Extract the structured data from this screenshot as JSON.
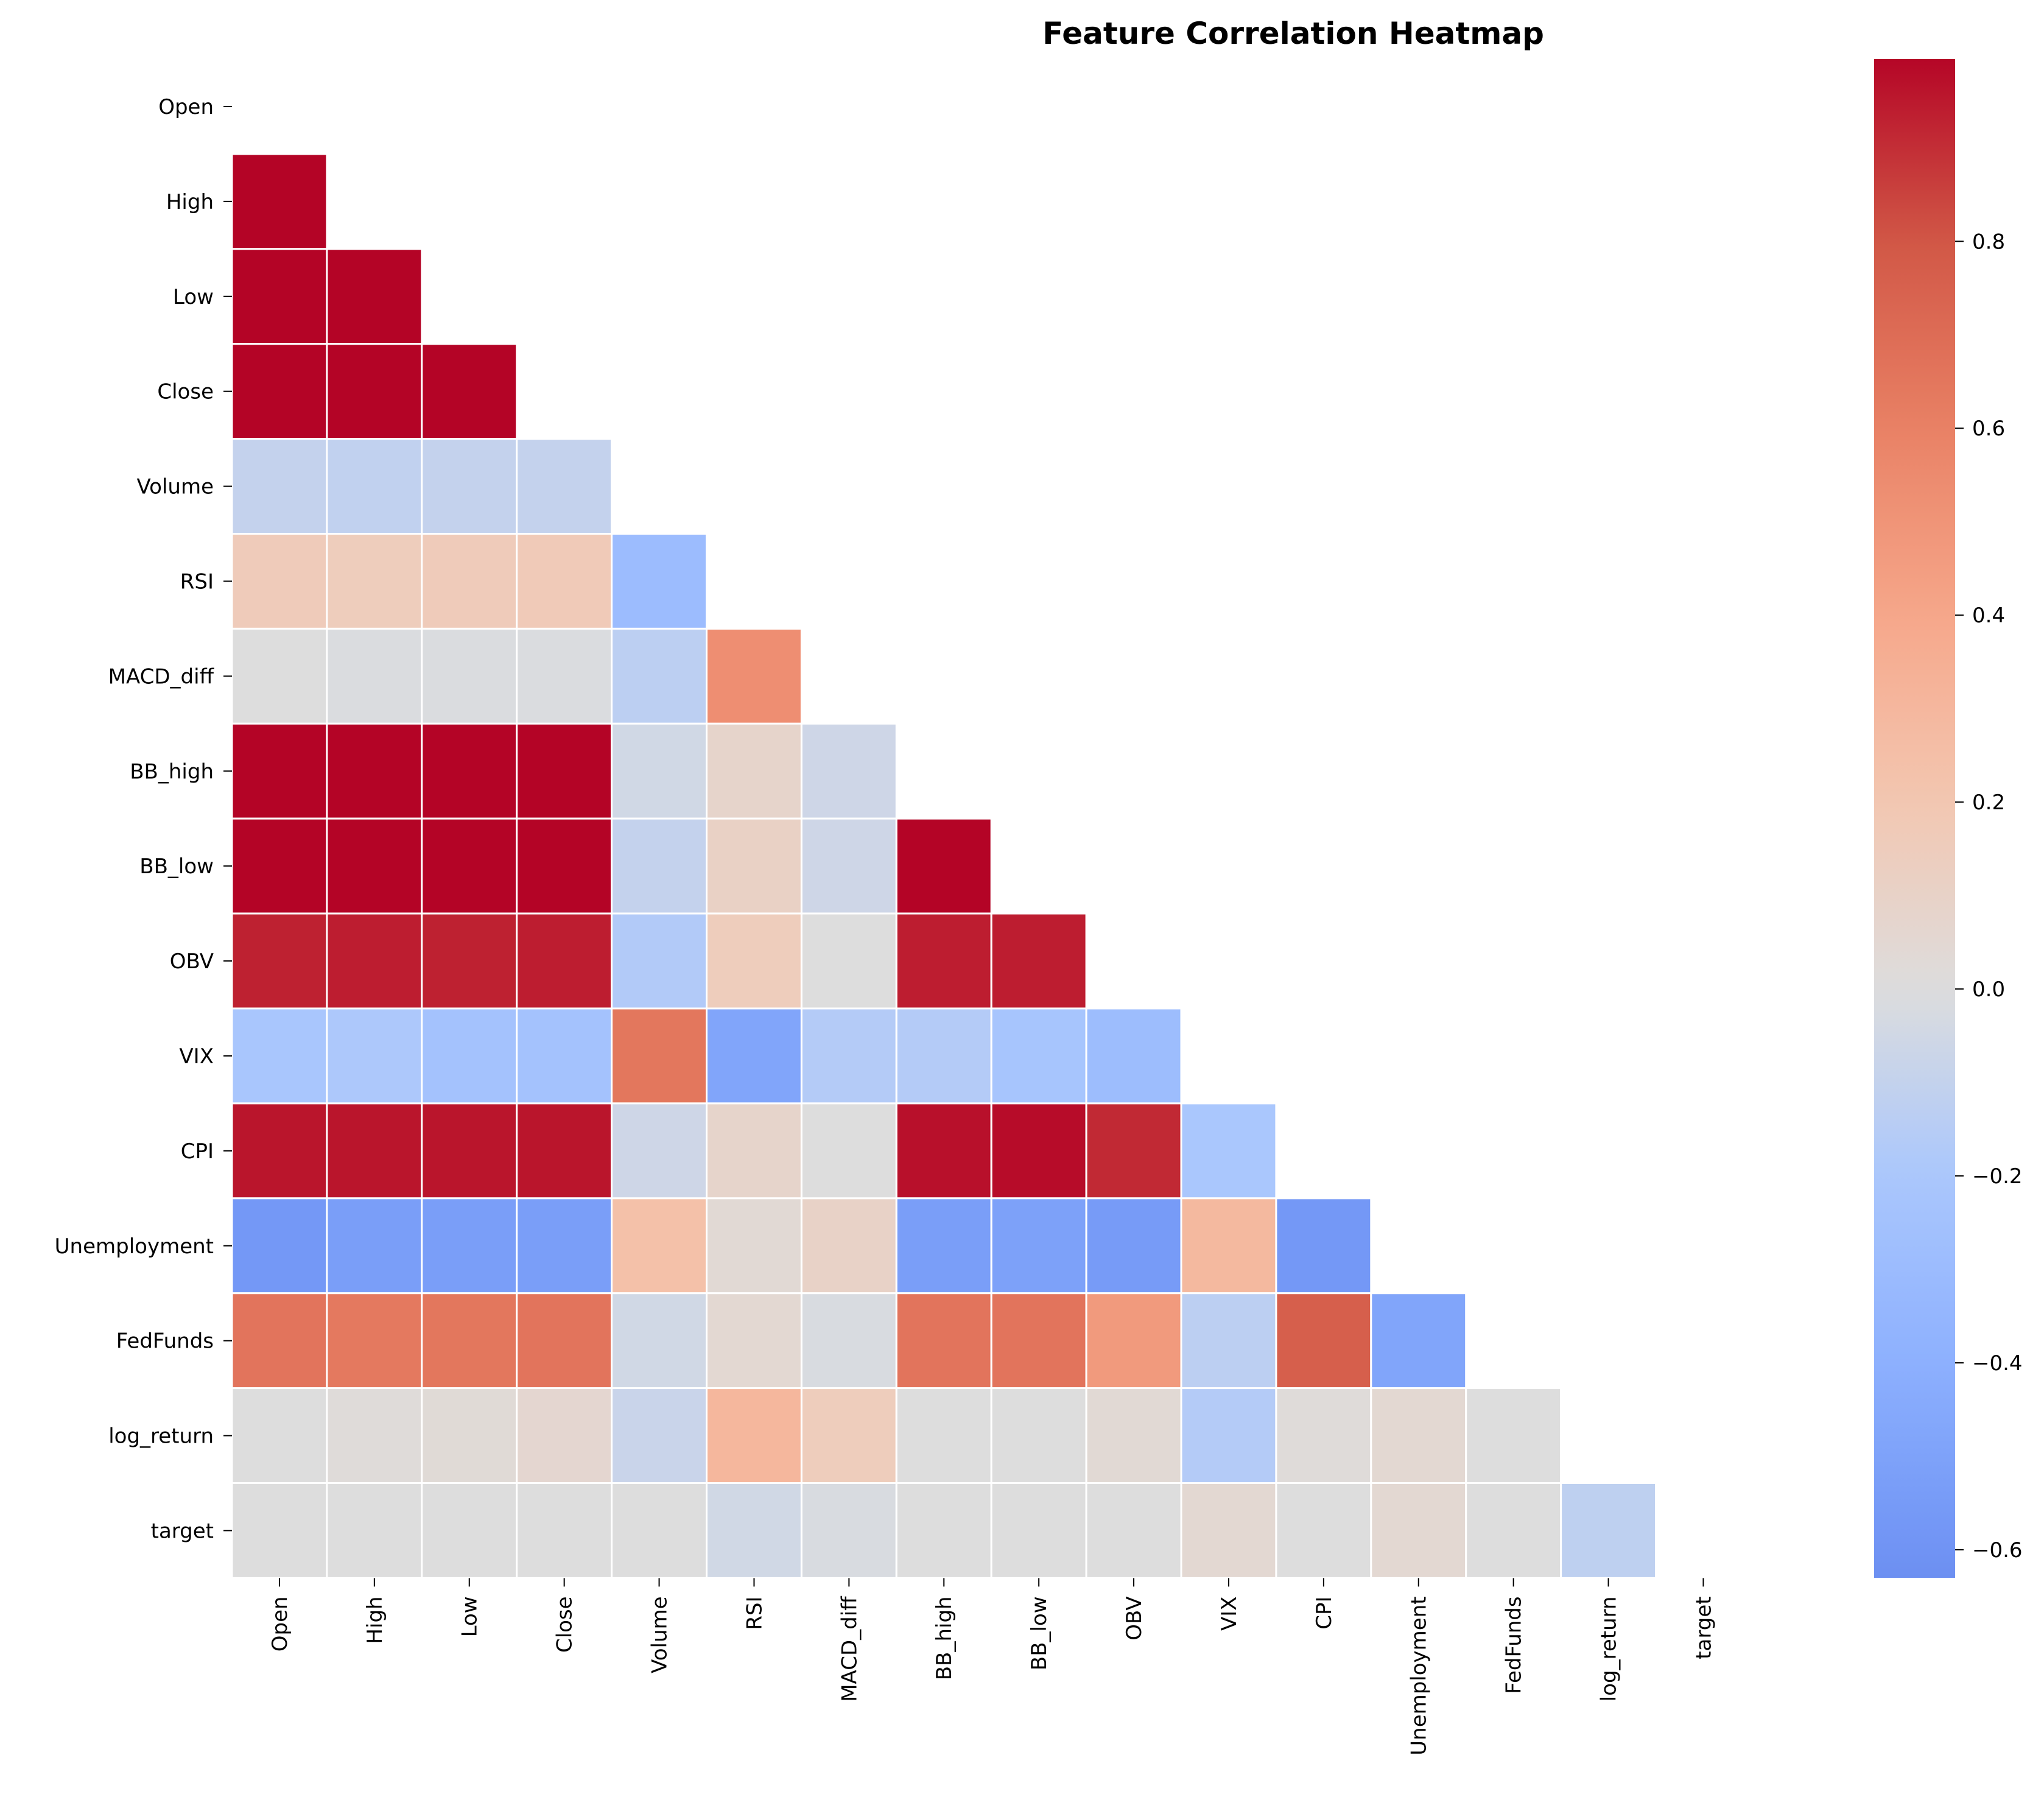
{
  "chart_data": {
    "type": "heatmap",
    "title": "Feature Correlation Heatmap",
    "labels": [
      "Open",
      "High",
      "Low",
      "Close",
      "Volume",
      "RSI",
      "MACD_diff",
      "BB_high",
      "BB_low",
      "OBV",
      "VIX",
      "CPI",
      "Unemployment",
      "FedFunds",
      "log_return",
      "target"
    ],
    "mask": "upper-triangle-and-diagonal",
    "lower_triangle_rows": [
      [],
      [
        1.0
      ],
      [
        1.0,
        1.0
      ],
      [
        1.0,
        1.0,
        1.0
      ],
      [
        -0.1,
        -0.11,
        -0.1,
        -0.1
      ],
      [
        0.16,
        0.15,
        0.16,
        0.17,
        -0.3
      ],
      [
        0.0,
        -0.01,
        -0.01,
        -0.01,
        -0.13,
        0.53
      ],
      [
        1.0,
        1.0,
        1.0,
        1.0,
        -0.05,
        0.08,
        -0.06
      ],
      [
        1.0,
        1.0,
        1.0,
        1.0,
        -0.1,
        0.11,
        -0.06,
        1.0
      ],
      [
        0.93,
        0.94,
        0.93,
        0.94,
        -0.17,
        0.15,
        0.0,
        0.94,
        0.94
      ],
      [
        -0.21,
        -0.19,
        -0.24,
        -0.24,
        0.65,
        -0.48,
        -0.16,
        -0.16,
        -0.22,
        -0.29
      ],
      [
        0.96,
        0.96,
        0.96,
        0.96,
        -0.06,
        0.08,
        0.0,
        0.97,
        0.98,
        0.91,
        -0.2
      ],
      [
        -0.57,
        -0.53,
        -0.53,
        -0.53,
        0.24,
        0.04,
        0.1,
        -0.53,
        -0.51,
        -0.55,
        0.29,
        -0.57
      ],
      [
        0.66,
        0.64,
        0.65,
        0.66,
        -0.05,
        0.05,
        -0.02,
        0.66,
        0.66,
        0.47,
        -0.13,
        0.76,
        -0.48
      ],
      [
        0.0,
        0.02,
        0.03,
        0.06,
        -0.08,
        0.3,
        0.15,
        0.0,
        0.0,
        0.04,
        -0.16,
        0.02,
        0.05,
        0.0
      ],
      [
        0.0,
        0.0,
        0.0,
        0.0,
        0.0,
        -0.05,
        -0.02,
        0.0,
        0.0,
        0.0,
        0.05,
        0.0,
        0.05,
        0.0,
        -0.12
      ]
    ],
    "colormap": "coolwarm",
    "colorbar": {
      "vmin": -0.63,
      "vmax": 0.995,
      "ticks": [
        -0.6,
        -0.4,
        -0.2,
        0.0,
        0.2,
        0.4,
        0.6,
        0.8
      ],
      "tick_labels": [
        "−0.6",
        "−0.4",
        "−0.2",
        "0.0",
        "0.2",
        "0.4",
        "0.6",
        "0.8"
      ]
    },
    "xlabel": "",
    "ylabel": ""
  }
}
